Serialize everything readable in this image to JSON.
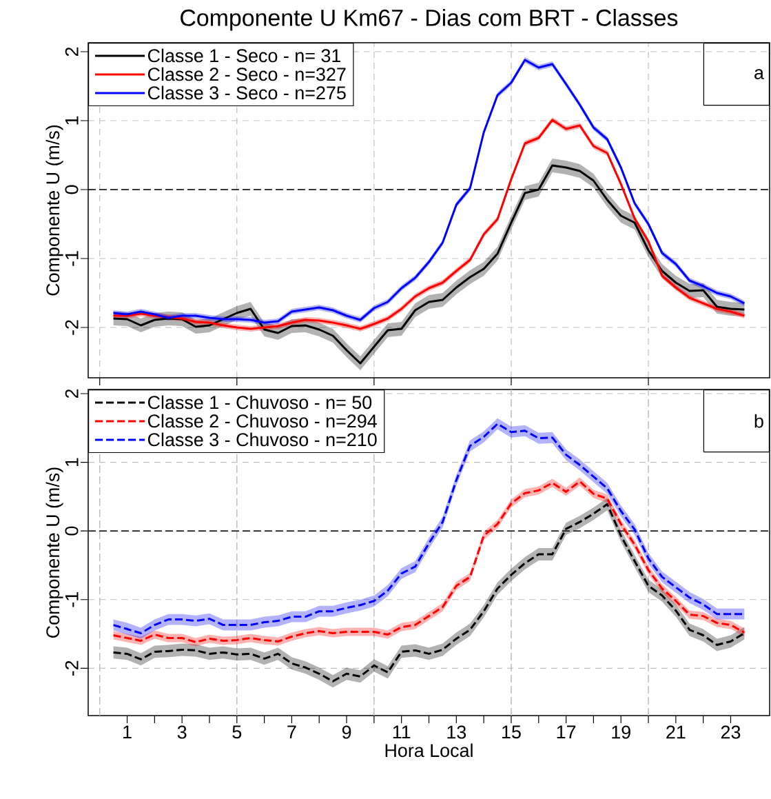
{
  "chart_data": [
    {
      "type": "line",
      "title": "Componente U Km67 - Dias com BRT - Classes",
      "ylabel": "Componente U (m/s)",
      "x": [
        0.5,
        1,
        1.5,
        2,
        2.5,
        3,
        3.5,
        4,
        4.5,
        5,
        5.5,
        6,
        6.5,
        7,
        7.5,
        8,
        8.5,
        9,
        9.5,
        10,
        10.5,
        11,
        11.5,
        12,
        12.5,
        13,
        13.5,
        14,
        14.5,
        15,
        15.5,
        16,
        16.5,
        17,
        17.5,
        18,
        18.5,
        19,
        19.5,
        20,
        20.5,
        21,
        21.5,
        22,
        22.5,
        23,
        23.5
      ],
      "xlim": [
        -0.42,
        24.42
      ],
      "ylim": [
        -2.73,
        2.13
      ],
      "xticks": [
        0,
        5,
        10,
        15,
        20
      ],
      "yticks": [
        -2,
        -1,
        0,
        1,
        2
      ],
      "tick_labels": "y",
      "grid": true,
      "legend": "top left",
      "line_style": "solid",
      "ref_lines": [
        {
          "axis": "y",
          "value": 0,
          "color": "#000000",
          "line_style": "dashed"
        }
      ],
      "annotations": [
        "a"
      ],
      "series": [
        {
          "name": "Classe 1 - Seco - n= 31",
          "color": "#000000",
          "values": [
            -1.87,
            -1.88,
            -1.97,
            -1.89,
            -1.87,
            -1.88,
            -1.99,
            -1.97,
            -1.88,
            -1.79,
            -1.73,
            -2.03,
            -2.08,
            -1.98,
            -1.97,
            -2.03,
            -2.12,
            -2.33,
            -2.52,
            -2.28,
            -2.04,
            -2.02,
            -1.75,
            -1.63,
            -1.6,
            -1.42,
            -1.27,
            -1.15,
            -0.93,
            -0.48,
            -0.05,
            0.0,
            0.35,
            0.32,
            0.27,
            0.13,
            -0.15,
            -0.38,
            -0.48,
            -0.88,
            -1.18,
            -1.35,
            -1.47,
            -1.46,
            -1.7,
            -1.73,
            -1.74
          ],
          "lower": [
            -1.97,
            -1.98,
            -2.07,
            -1.99,
            -1.97,
            -1.98,
            -2.09,
            -2.07,
            -1.98,
            -1.89,
            -1.83,
            -2.13,
            -2.18,
            -2.08,
            -2.07,
            -2.13,
            -2.22,
            -2.43,
            -2.62,
            -2.38,
            -2.14,
            -2.12,
            -1.85,
            -1.73,
            -1.7,
            -1.52,
            -1.37,
            -1.25,
            -1.03,
            -0.58,
            -0.15,
            -0.1,
            0.25,
            0.22,
            0.17,
            0.03,
            -0.25,
            -0.48,
            -0.58,
            -0.98,
            -1.28,
            -1.45,
            -1.57,
            -1.56,
            -1.8,
            -1.83,
            -1.84
          ],
          "upper": [
            -1.77,
            -1.78,
            -1.87,
            -1.79,
            -1.77,
            -1.78,
            -1.89,
            -1.87,
            -1.78,
            -1.69,
            -1.63,
            -1.93,
            -1.98,
            -1.88,
            -1.87,
            -1.93,
            -2.02,
            -2.23,
            -2.42,
            -2.18,
            -1.94,
            -1.92,
            -1.65,
            -1.53,
            -1.5,
            -1.32,
            -1.17,
            -1.05,
            -0.83,
            -0.38,
            0.05,
            0.1,
            0.45,
            0.42,
            0.37,
            0.23,
            -0.05,
            -0.28,
            -0.38,
            -0.78,
            -1.08,
            -1.25,
            -1.37,
            -1.36,
            -1.6,
            -1.63,
            -1.64
          ]
        },
        {
          "name": "Classe 2 - Seco - n=327",
          "color": "#ff0000",
          "values": [
            -1.83,
            -1.83,
            -1.8,
            -1.83,
            -1.85,
            -1.87,
            -1.92,
            -1.93,
            -1.97,
            -2.0,
            -2.02,
            -2.0,
            -1.98,
            -1.93,
            -1.89,
            -1.9,
            -1.93,
            -1.97,
            -2.02,
            -1.95,
            -1.87,
            -1.73,
            -1.55,
            -1.43,
            -1.35,
            -1.18,
            -1.02,
            -0.65,
            -0.43,
            0.15,
            0.67,
            0.75,
            1.01,
            0.88,
            0.93,
            0.63,
            0.53,
            0.08,
            -0.42,
            -0.75,
            -1.25,
            -1.42,
            -1.57,
            -1.65,
            -1.73,
            -1.77,
            -1.83
          ],
          "lower": [
            -1.87,
            -1.87,
            -1.84,
            -1.87,
            -1.89,
            -1.91,
            -1.96,
            -1.97,
            -2.01,
            -2.04,
            -2.06,
            -2.04,
            -2.02,
            -1.97,
            -1.93,
            -1.94,
            -1.97,
            -2.01,
            -2.06,
            -1.99,
            -1.91,
            -1.77,
            -1.59,
            -1.47,
            -1.39,
            -1.22,
            -1.06,
            -0.69,
            -0.47,
            0.11,
            0.63,
            0.71,
            0.97,
            0.84,
            0.89,
            0.59,
            0.49,
            0.04,
            -0.46,
            -0.79,
            -1.29,
            -1.46,
            -1.61,
            -1.69,
            -1.77,
            -1.81,
            -1.87
          ],
          "upper": [
            -1.79,
            -1.79,
            -1.76,
            -1.79,
            -1.81,
            -1.83,
            -1.88,
            -1.89,
            -1.93,
            -1.96,
            -1.98,
            -1.96,
            -1.94,
            -1.89,
            -1.85,
            -1.86,
            -1.89,
            -1.93,
            -1.98,
            -1.91,
            -1.83,
            -1.69,
            -1.51,
            -1.39,
            -1.31,
            -1.14,
            -0.98,
            -0.61,
            -0.39,
            0.19,
            0.71,
            0.79,
            1.05,
            0.92,
            0.97,
            0.67,
            0.57,
            0.12,
            -0.38,
            -0.71,
            -1.21,
            -1.38,
            -1.53,
            -1.61,
            -1.69,
            -1.73,
            -1.79
          ]
        },
        {
          "name": "Classe 3 - Seco - n=275",
          "color": "#0000ff",
          "values": [
            -1.79,
            -1.81,
            -1.77,
            -1.81,
            -1.86,
            -1.83,
            -1.83,
            -1.86,
            -1.88,
            -1.88,
            -1.89,
            -1.93,
            -1.91,
            -1.77,
            -1.74,
            -1.71,
            -1.75,
            -1.83,
            -1.89,
            -1.72,
            -1.63,
            -1.43,
            -1.28,
            -1.05,
            -0.77,
            -0.22,
            0.02,
            0.83,
            1.37,
            1.55,
            1.88,
            1.77,
            1.82,
            1.53,
            1.23,
            0.9,
            0.73,
            0.32,
            -0.2,
            -0.5,
            -0.92,
            -1.08,
            -1.32,
            -1.4,
            -1.5,
            -1.55,
            -1.65
          ],
          "lower": [
            -1.83,
            -1.85,
            -1.81,
            -1.85,
            -1.9,
            -1.87,
            -1.87,
            -1.9,
            -1.92,
            -1.92,
            -1.93,
            -1.97,
            -1.95,
            -1.81,
            -1.78,
            -1.75,
            -1.79,
            -1.87,
            -1.93,
            -1.76,
            -1.67,
            -1.47,
            -1.32,
            -1.09,
            -0.81,
            -0.26,
            -0.02,
            0.79,
            1.33,
            1.51,
            1.84,
            1.73,
            1.78,
            1.49,
            1.19,
            0.86,
            0.69,
            0.28,
            -0.24,
            -0.54,
            -0.96,
            -1.12,
            -1.36,
            -1.44,
            -1.54,
            -1.59,
            -1.69
          ],
          "upper": [
            -1.75,
            -1.77,
            -1.73,
            -1.77,
            -1.82,
            -1.79,
            -1.79,
            -1.82,
            -1.84,
            -1.84,
            -1.85,
            -1.89,
            -1.87,
            -1.73,
            -1.7,
            -1.67,
            -1.71,
            -1.79,
            -1.85,
            -1.68,
            -1.59,
            -1.39,
            -1.24,
            -1.01,
            -0.73,
            -0.18,
            0.06,
            0.87,
            1.41,
            1.59,
            1.92,
            1.81,
            1.86,
            1.57,
            1.27,
            0.94,
            0.77,
            0.36,
            -0.16,
            -0.46,
            -0.88,
            -1.04,
            -1.28,
            -1.36,
            -1.46,
            -1.51,
            -1.61
          ]
        }
      ]
    },
    {
      "type": "line",
      "xlabel": "Hora Local",
      "ylabel": "Componente U (m/s)",
      "x": [
        0.5,
        1,
        1.5,
        2,
        2.5,
        3,
        3.5,
        4,
        4.5,
        5,
        5.5,
        6,
        6.5,
        7,
        7.5,
        8,
        8.5,
        9,
        9.5,
        10,
        10.5,
        11,
        11.5,
        12,
        12.5,
        13,
        13.5,
        14,
        14.5,
        15,
        15.5,
        16,
        16.5,
        17,
        17.5,
        18,
        18.5,
        19,
        19.5,
        20,
        20.5,
        21,
        21.5,
        22,
        22.5,
        23,
        23.5
      ],
      "xlim": [
        -0.42,
        24.42
      ],
      "ylim": [
        -2.69,
        2.06
      ],
      "xticks": [
        1,
        {
          "value": 2,
          "label": null
        },
        3,
        {
          "value": 4,
          "label": null
        },
        5,
        {
          "value": 6,
          "label": null
        },
        7,
        {
          "value": 8,
          "label": null
        },
        9,
        {
          "value": 10,
          "label": null
        },
        11,
        {
          "value": 12,
          "label": null
        },
        13,
        {
          "value": 14,
          "label": null
        },
        15,
        {
          "value": 16,
          "label": null
        },
        17,
        {
          "value": 18,
          "label": null
        },
        19,
        {
          "value": 20,
          "label": null
        },
        21,
        {
          "value": 22,
          "label": null
        },
        23
      ],
      "yticks": [
        -2,
        -1,
        0,
        1,
        2
      ],
      "grid": "y",
      "legend": "top left",
      "line_style": "dashed",
      "ref_lines": [
        {
          "axis": "y",
          "value": 0,
          "color": "#000000",
          "line_style": "dashed"
        },
        {
          "axis": "x",
          "value": 0,
          "color": "#bebebe",
          "line_style": "dashed"
        },
        {
          "axis": "x",
          "value": 5,
          "color": "#bebebe",
          "line_style": "dashed"
        },
        {
          "axis": "x",
          "value": 10,
          "color": "#bebebe",
          "line_style": "dashed"
        },
        {
          "axis": "x",
          "value": 15,
          "color": "#bebebe",
          "line_style": "dashed"
        },
        {
          "axis": "x",
          "value": 20,
          "color": "#bebebe",
          "line_style": "dashed"
        }
      ],
      "annotations": [
        "b"
      ],
      "series": [
        {
          "name": "Classe 1 - Chuvoso - n= 50",
          "color": "#000000",
          "values": [
            -1.77,
            -1.79,
            -1.87,
            -1.76,
            -1.75,
            -1.73,
            -1.74,
            -1.79,
            -1.77,
            -1.8,
            -1.79,
            -1.86,
            -1.79,
            -1.93,
            -1.99,
            -2.08,
            -2.19,
            -2.08,
            -2.12,
            -1.96,
            -2.06,
            -1.76,
            -1.74,
            -1.79,
            -1.73,
            -1.57,
            -1.44,
            -1.17,
            -0.84,
            -0.64,
            -0.47,
            -0.34,
            -0.34,
            0.03,
            0.13,
            0.25,
            0.39,
            -0.07,
            -0.44,
            -0.8,
            -0.94,
            -1.16,
            -1.44,
            -1.52,
            -1.66,
            -1.61,
            -1.49
          ],
          "lower": [
            -1.86,
            -1.88,
            -1.96,
            -1.85,
            -1.84,
            -1.82,
            -1.83,
            -1.88,
            -1.86,
            -1.89,
            -1.88,
            -1.95,
            -1.88,
            -2.02,
            -2.08,
            -2.17,
            -2.28,
            -2.17,
            -2.21,
            -2.05,
            -2.15,
            -1.85,
            -1.83,
            -1.88,
            -1.82,
            -1.66,
            -1.53,
            -1.26,
            -0.93,
            -0.73,
            -0.56,
            -0.43,
            -0.43,
            -0.06,
            0.04,
            0.16,
            0.3,
            -0.16,
            -0.53,
            -0.89,
            -1.03,
            -1.25,
            -1.53,
            -1.61,
            -1.75,
            -1.7,
            -1.58
          ],
          "upper": [
            -1.68,
            -1.7,
            -1.78,
            -1.67,
            -1.66,
            -1.64,
            -1.65,
            -1.7,
            -1.68,
            -1.71,
            -1.7,
            -1.77,
            -1.7,
            -1.84,
            -1.9,
            -1.99,
            -2.1,
            -1.99,
            -2.03,
            -1.87,
            -1.97,
            -1.67,
            -1.65,
            -1.7,
            -1.64,
            -1.48,
            -1.35,
            -1.08,
            -0.75,
            -0.55,
            -0.38,
            -0.25,
            -0.25,
            0.12,
            0.22,
            0.34,
            0.48,
            0.02,
            -0.35,
            -0.71,
            -0.85,
            -1.07,
            -1.35,
            -1.43,
            -1.57,
            -1.52,
            -1.4
          ]
        },
        {
          "name": "Classe 2 - Chuvoso - n=294",
          "color": "#ff0000",
          "values": [
            -1.52,
            -1.56,
            -1.6,
            -1.51,
            -1.56,
            -1.56,
            -1.62,
            -1.57,
            -1.6,
            -1.59,
            -1.56,
            -1.59,
            -1.61,
            -1.54,
            -1.49,
            -1.46,
            -1.49,
            -1.47,
            -1.47,
            -1.47,
            -1.51,
            -1.4,
            -1.37,
            -1.24,
            -1.11,
            -0.8,
            -0.67,
            -0.07,
            0.1,
            0.4,
            0.55,
            0.59,
            0.7,
            0.57,
            0.72,
            0.54,
            0.47,
            0.1,
            -0.2,
            -0.57,
            -0.84,
            -1.02,
            -1.22,
            -1.24,
            -1.34,
            -1.37,
            -1.48
          ],
          "lower": [
            -1.58,
            -1.62,
            -1.66,
            -1.57,
            -1.62,
            -1.62,
            -1.68,
            -1.63,
            -1.66,
            -1.65,
            -1.62,
            -1.65,
            -1.67,
            -1.6,
            -1.55,
            -1.52,
            -1.55,
            -1.53,
            -1.53,
            -1.53,
            -1.57,
            -1.46,
            -1.43,
            -1.3,
            -1.17,
            -0.86,
            -0.73,
            -0.13,
            0.04,
            0.34,
            0.49,
            0.53,
            0.64,
            0.51,
            0.66,
            0.48,
            0.41,
            0.04,
            -0.26,
            -0.63,
            -0.9,
            -1.08,
            -1.28,
            -1.3,
            -1.4,
            -1.43,
            -1.54
          ],
          "upper": [
            -1.46,
            -1.5,
            -1.54,
            -1.45,
            -1.5,
            -1.5,
            -1.56,
            -1.51,
            -1.54,
            -1.53,
            -1.5,
            -1.53,
            -1.55,
            -1.48,
            -1.43,
            -1.4,
            -1.43,
            -1.41,
            -1.41,
            -1.41,
            -1.45,
            -1.34,
            -1.31,
            -1.18,
            -1.05,
            -0.74,
            -0.61,
            -0.01,
            0.16,
            0.46,
            0.61,
            0.65,
            0.76,
            0.63,
            0.78,
            0.6,
            0.53,
            0.16,
            -0.14,
            -0.51,
            -0.78,
            -0.96,
            -1.16,
            -1.18,
            -1.28,
            -1.31,
            -1.42
          ]
        },
        {
          "name": "Classe 3 - Chuvoso - n=210",
          "color": "#0000ff",
          "values": [
            -1.37,
            -1.43,
            -1.49,
            -1.37,
            -1.29,
            -1.29,
            -1.31,
            -1.28,
            -1.37,
            -1.37,
            -1.37,
            -1.33,
            -1.31,
            -1.25,
            -1.25,
            -1.17,
            -1.17,
            -1.12,
            -1.08,
            -1.02,
            -0.87,
            -0.62,
            -0.52,
            -0.18,
            0.13,
            0.74,
            1.24,
            1.37,
            1.56,
            1.44,
            1.46,
            1.35,
            1.36,
            1.11,
            0.96,
            0.79,
            0.62,
            0.29,
            0.02,
            -0.4,
            -0.67,
            -0.82,
            -0.97,
            -1.07,
            -1.21,
            -1.21,
            -1.21
          ],
          "lower": [
            -1.45,
            -1.51,
            -1.57,
            -1.45,
            -1.37,
            -1.37,
            -1.39,
            -1.36,
            -1.45,
            -1.45,
            -1.45,
            -1.41,
            -1.39,
            -1.33,
            -1.33,
            -1.25,
            -1.25,
            -1.2,
            -1.16,
            -1.1,
            -0.95,
            -0.7,
            -0.6,
            -0.26,
            0.05,
            0.66,
            1.16,
            1.29,
            1.48,
            1.36,
            1.38,
            1.27,
            1.28,
            1.03,
            0.88,
            0.71,
            0.54,
            0.21,
            -0.06,
            -0.48,
            -0.75,
            -0.9,
            -1.05,
            -1.15,
            -1.29,
            -1.29,
            -1.29
          ],
          "upper": [
            -1.29,
            -1.34,
            -1.41,
            -1.29,
            -1.21,
            -1.21,
            -1.23,
            -1.2,
            -1.29,
            -1.29,
            -1.29,
            -1.25,
            -1.23,
            -1.17,
            -1.17,
            -1.09,
            -1.09,
            -1.04,
            -1.0,
            -0.94,
            -0.79,
            -0.54,
            -0.44,
            -0.1,
            0.21,
            0.82,
            1.32,
            1.45,
            1.64,
            1.52,
            1.54,
            1.43,
            1.44,
            1.19,
            1.04,
            0.87,
            0.7,
            0.37,
            0.1,
            -0.32,
            -0.59,
            -0.74,
            -0.89,
            -0.99,
            -1.13,
            -1.13,
            -1.13
          ]
        }
      ]
    }
  ]
}
